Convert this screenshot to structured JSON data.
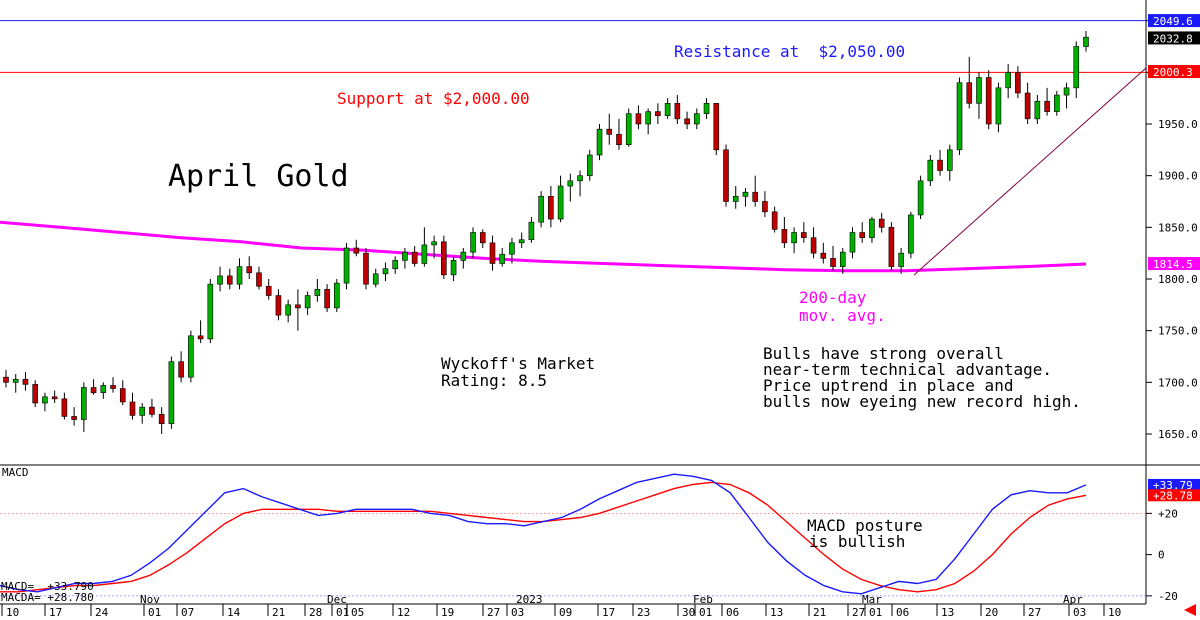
{
  "chart_data": {
    "type": "candlestick",
    "title": "April Gold",
    "price_axis": {
      "ylim": [
        1620,
        2070
      ],
      "ticks": [
        "2050.0",
        "2000.0",
        "1950.0",
        "1900.0",
        "1850.0",
        "1800.0",
        "1750.0",
        "1700.0",
        "1650.0"
      ]
    },
    "price_tags": [
      {
        "label": "2049.6",
        "value": 2049.6,
        "color": "#1a1aff"
      },
      {
        "label": "2032.8",
        "value": 2032.8,
        "color": "#000000"
      },
      {
        "label": "2000.3",
        "value": 2000.3,
        "color": "#ff0000"
      },
      {
        "label": "1814.5",
        "value": 1814.5,
        "color": "#ff00ff"
      }
    ],
    "resistance": {
      "text": "Resistance at  $2,050.00",
      "value": 2050,
      "color": "#1a1aff"
    },
    "support": {
      "text": "Support at $2,000.00",
      "value": 2000,
      "color": "#ff0000"
    },
    "moving_average_label": [
      "200-day",
      "mov. avg."
    ],
    "moving_average": [
      1855,
      1850,
      1845,
      1840,
      1836,
      1830,
      1828,
      1824,
      1820,
      1817,
      1815,
      1813,
      1811,
      1809,
      1808,
      1808,
      1810,
      1812,
      1814.5
    ],
    "rating_text": [
      "Wyckoff's Market",
      "Rating: 8.5"
    ],
    "commentary": [
      "Bulls have strong overall",
      "near-term technical advantage.",
      "Price uptrend in place and",
      "bulls now eyeing new record high."
    ],
    "candles": [
      [
        1705,
        1712,
        1695,
        1700
      ],
      [
        1700,
        1708,
        1690,
        1703
      ],
      [
        1703,
        1710,
        1692,
        1698
      ],
      [
        1698,
        1702,
        1676,
        1680
      ],
      [
        1680,
        1690,
        1672,
        1686
      ],
      [
        1686,
        1692,
        1680,
        1684
      ],
      [
        1684,
        1690,
        1664,
        1667
      ],
      [
        1667,
        1676,
        1658,
        1664
      ],
      [
        1664,
        1700,
        1652,
        1695
      ],
      [
        1695,
        1703,
        1688,
        1690
      ],
      [
        1690,
        1700,
        1684,
        1697
      ],
      [
        1697,
        1705,
        1690,
        1694
      ],
      [
        1694,
        1702,
        1678,
        1681
      ],
      [
        1681,
        1690,
        1664,
        1668
      ],
      [
        1668,
        1680,
        1660,
        1676
      ],
      [
        1676,
        1684,
        1666,
        1669
      ],
      [
        1669,
        1676,
        1650,
        1660
      ],
      [
        1660,
        1725,
        1655,
        1720
      ],
      [
        1720,
        1730,
        1700,
        1705
      ],
      [
        1705,
        1750,
        1700,
        1745
      ],
      [
        1745,
        1760,
        1738,
        1742
      ],
      [
        1742,
        1800,
        1738,
        1795
      ],
      [
        1795,
        1812,
        1788,
        1803
      ],
      [
        1803,
        1810,
        1790,
        1795
      ],
      [
        1795,
        1820,
        1790,
        1812
      ],
      [
        1812,
        1822,
        1800,
        1806
      ],
      [
        1806,
        1812,
        1790,
        1793
      ],
      [
        1793,
        1800,
        1780,
        1784
      ],
      [
        1784,
        1790,
        1760,
        1765
      ],
      [
        1765,
        1780,
        1758,
        1775
      ],
      [
        1775,
        1790,
        1750,
        1772
      ],
      [
        1772,
        1788,
        1765,
        1784
      ],
      [
        1784,
        1800,
        1778,
        1790
      ],
      [
        1790,
        1795,
        1768,
        1772
      ],
      [
        1772,
        1800,
        1768,
        1796
      ],
      [
        1796,
        1835,
        1790,
        1830
      ],
      [
        1830,
        1838,
        1822,
        1825
      ],
      [
        1825,
        1830,
        1790,
        1795
      ],
      [
        1795,
        1810,
        1792,
        1805
      ],
      [
        1805,
        1816,
        1798,
        1810
      ],
      [
        1810,
        1822,
        1805,
        1818
      ],
      [
        1818,
        1830,
        1810,
        1826
      ],
      [
        1826,
        1832,
        1812,
        1815
      ],
      [
        1815,
        1850,
        1812,
        1833
      ],
      [
        1833,
        1842,
        1820,
        1836
      ],
      [
        1836,
        1842,
        1800,
        1804
      ],
      [
        1804,
        1822,
        1798,
        1818
      ],
      [
        1818,
        1830,
        1810,
        1826
      ],
      [
        1826,
        1850,
        1820,
        1845
      ],
      [
        1845,
        1848,
        1830,
        1835
      ],
      [
        1835,
        1842,
        1808,
        1815
      ],
      [
        1815,
        1830,
        1812,
        1824
      ],
      [
        1824,
        1840,
        1815,
        1835
      ],
      [
        1835,
        1845,
        1830,
        1838
      ],
      [
        1838,
        1860,
        1835,
        1855
      ],
      [
        1855,
        1885,
        1850,
        1880
      ],
      [
        1880,
        1890,
        1850,
        1858
      ],
      [
        1858,
        1900,
        1855,
        1890
      ],
      [
        1890,
        1902,
        1875,
        1895
      ],
      [
        1895,
        1905,
        1880,
        1900
      ],
      [
        1900,
        1925,
        1895,
        1920
      ],
      [
        1920,
        1950,
        1915,
        1945
      ],
      [
        1945,
        1960,
        1930,
        1940
      ],
      [
        1940,
        1955,
        1925,
        1930
      ],
      [
        1930,
        1965,
        1928,
        1960
      ],
      [
        1960,
        1968,
        1945,
        1950
      ],
      [
        1950,
        1965,
        1940,
        1962
      ],
      [
        1962,
        1970,
        1950,
        1958
      ],
      [
        1958,
        1975,
        1955,
        1970
      ],
      [
        1970,
        1978,
        1950,
        1955
      ],
      [
        1955,
        1962,
        1945,
        1950
      ],
      [
        1950,
        1965,
        1945,
        1960
      ],
      [
        1960,
        1975,
        1955,
        1970
      ],
      [
        1970,
        1970,
        1920,
        1925
      ],
      [
        1925,
        1930,
        1870,
        1875
      ],
      [
        1875,
        1890,
        1868,
        1880
      ],
      [
        1880,
        1888,
        1870,
        1884
      ],
      [
        1884,
        1900,
        1870,
        1875
      ],
      [
        1875,
        1885,
        1860,
        1865
      ],
      [
        1865,
        1870,
        1845,
        1848
      ],
      [
        1848,
        1860,
        1830,
        1835
      ],
      [
        1835,
        1850,
        1825,
        1845
      ],
      [
        1845,
        1855,
        1835,
        1840
      ],
      [
        1840,
        1850,
        1820,
        1825
      ],
      [
        1825,
        1835,
        1815,
        1820
      ],
      [
        1820,
        1832,
        1808,
        1812
      ],
      [
        1812,
        1830,
        1805,
        1826
      ],
      [
        1826,
        1850,
        1820,
        1845
      ],
      [
        1845,
        1855,
        1835,
        1840
      ],
      [
        1840,
        1860,
        1835,
        1858
      ],
      [
        1858,
        1864,
        1845,
        1850
      ],
      [
        1850,
        1855,
        1808,
        1812
      ],
      [
        1812,
        1830,
        1805,
        1825
      ],
      [
        1825,
        1865,
        1820,
        1862
      ],
      [
        1862,
        1900,
        1858,
        1895
      ],
      [
        1895,
        1920,
        1890,
        1915
      ],
      [
        1915,
        1925,
        1900,
        1905
      ],
      [
        1905,
        1930,
        1895,
        1925
      ],
      [
        1925,
        1995,
        1920,
        1990
      ],
      [
        1990,
        2015,
        1965,
        1970
      ],
      [
        1970,
        2000,
        1955,
        1995
      ],
      [
        1995,
        2002,
        1945,
        1950
      ],
      [
        1950,
        1990,
        1942,
        1985
      ],
      [
        1985,
        2008,
        1975,
        2000
      ],
      [
        2000,
        2006,
        1975,
        1980
      ],
      [
        1980,
        1990,
        1950,
        1955
      ],
      [
        1955,
        1978,
        1950,
        1972
      ],
      [
        1972,
        1985,
        1958,
        1962
      ],
      [
        1962,
        1982,
        1958,
        1978
      ],
      [
        1978,
        1990,
        1965,
        1985
      ],
      [
        1985,
        2030,
        1975,
        2025
      ],
      [
        2025,
        2040,
        2020,
        2034
      ]
    ],
    "x_ticks": [
      "10",
      "17",
      "24",
      "01",
      "07",
      "14",
      "21",
      "28",
      "01",
      "05",
      "12",
      "19",
      "27",
      "03",
      "09",
      "17",
      "23",
      "30",
      "01",
      "06",
      "13",
      "21",
      "27",
      "01",
      "06",
      "13",
      "20",
      "27",
      "03",
      "10"
    ],
    "month_labels": [
      "Nov",
      "Dec",
      "2023",
      "Feb",
      "Mar",
      "Apr"
    ],
    "macd_panel": {
      "label": "MACD",
      "macd_value_label": "MACD=  +33.790",
      "macda_value_label": "MACDA= +28.780",
      "tags": [
        {
          "label": "+33.79",
          "value": 33.79,
          "color": "#1a1aff"
        },
        {
          "label": "+28.78",
          "value": 28.78,
          "color": "#ff0000"
        }
      ],
      "ticks": [
        "+20",
        "0",
        "-20"
      ],
      "ylim": [
        -22,
        42
      ],
      "annotation": [
        "MACD posture",
        "is bullish"
      ],
      "macd": [
        -15,
        -17,
        -18,
        -16,
        -14,
        -14,
        -13,
        -10,
        -4,
        3,
        12,
        21,
        30,
        32,
        28,
        25,
        22,
        19,
        20,
        22,
        22,
        22,
        22,
        20,
        19,
        16,
        15,
        15,
        14,
        16,
        18,
        22,
        27,
        31,
        35,
        37,
        39,
        38,
        36,
        30,
        18,
        6,
        -3,
        -10,
        -15,
        -18,
        -19,
        -16,
        -13,
        -14,
        -12,
        -2,
        10,
        22,
        29,
        31,
        30,
        30,
        33.79
      ],
      "macda": [
        -18,
        -18,
        -17,
        -16,
        -15,
        -15,
        -14,
        -13,
        -10,
        -5,
        1,
        8,
        15,
        20,
        22,
        22,
        22,
        22,
        21,
        21,
        21,
        21,
        21,
        21,
        20,
        19,
        18,
        17,
        16,
        16,
        17,
        18,
        20,
        23,
        26,
        29,
        32,
        34,
        35,
        34,
        30,
        24,
        16,
        8,
        0,
        -7,
        -12,
        -15,
        -17,
        -18,
        -17,
        -14,
        -8,
        0,
        10,
        18,
        24,
        27,
        28.78
      ]
    }
  }
}
